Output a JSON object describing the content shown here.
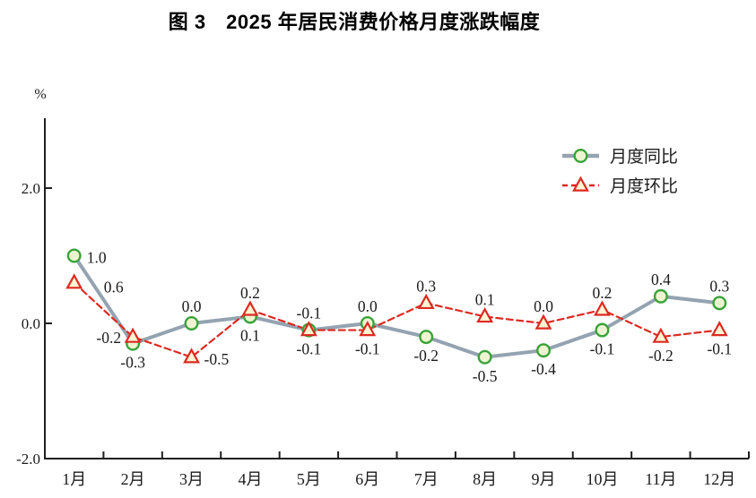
{
  "figure": {
    "title": "图 3　2025 年居民消费价格月度涨跌幅度"
  },
  "chart_data": {
    "type": "line",
    "title": "图 3 2025 年居民消费价格月度涨跌幅度",
    "xlabel": "",
    "ylabel": "%",
    "categories": [
      "1月",
      "2月",
      "3月",
      "4月",
      "5月",
      "6月",
      "7月",
      "8月",
      "9月",
      "10月",
      "11月",
      "12月"
    ],
    "series": [
      {
        "key": "yoy",
        "name": "月度同比",
        "values": [
          1.0,
          -0.3,
          0.0,
          0.1,
          -0.1,
          0.0,
          -0.2,
          -0.5,
          -0.4,
          -0.1,
          0.4,
          0.3
        ],
        "marker": "circle",
        "line_style": "solid",
        "line_color": "#94a3b1",
        "marker_stroke": "#3aa23a",
        "marker_fill": "#ecf5d0",
        "label_placement": [
          "right",
          "below",
          "above",
          "below",
          "below",
          "above",
          "below",
          "below",
          "below",
          "below",
          "above",
          "above"
        ]
      },
      {
        "key": "mom",
        "name": "月度环比",
        "values": [
          0.6,
          -0.2,
          -0.5,
          0.2,
          -0.1,
          -0.1,
          0.3,
          0.1,
          0.0,
          0.2,
          -0.2,
          -0.1
        ],
        "marker": "triangle",
        "line_style": "dashed",
        "line_color": "#dc2a21",
        "marker_stroke": "#dc2a21",
        "marker_fill": "#fdf5d3",
        "label_placement": [
          "right-far",
          "left",
          "right",
          "above",
          "above",
          "below",
          "above",
          "above",
          "above",
          "above",
          "below",
          "below"
        ]
      }
    ],
    "ylim": [
      -2.0,
      3.0
    ],
    "yticks": [
      {
        "value": 2.0,
        "label": "2.0"
      },
      {
        "value": 0.0,
        "label": "0.0"
      },
      {
        "value": -2.0,
        "label": "-2.0"
      }
    ],
    "grid": false,
    "legend_position": "upper right",
    "axis_color": "#1f1f1f",
    "label_color": "#1b1b1b"
  }
}
